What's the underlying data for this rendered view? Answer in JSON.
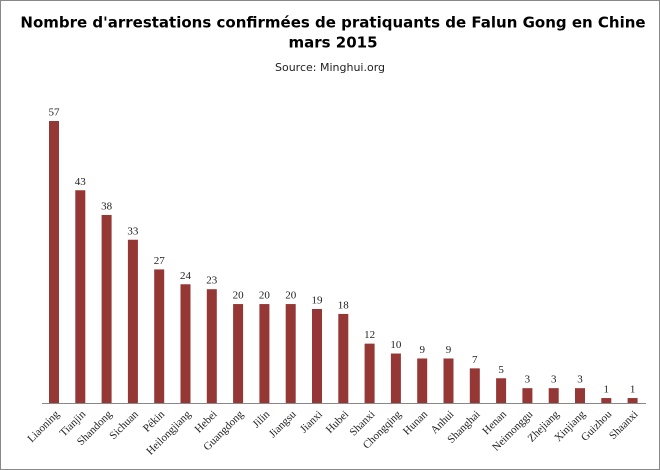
{
  "chart_data": {
    "type": "bar",
    "title": [
      "Nombre d'arrestations confirmées de pratiquants de Falun Gong en Chine",
      "mars 2015"
    ],
    "source": "Source: Minghui.org",
    "categories": [
      "Liaoning",
      "Tianjin",
      "Shandong",
      "Sichuan",
      "Pékin",
      "Heilongjiang",
      "Hebei",
      "Guangdong",
      "Jilin",
      "Jiangsu",
      "Jianxi",
      "Hubei",
      "Shanxi",
      "Chongqing",
      "Hunan",
      "Anhui",
      "Shanghai",
      "Henan",
      "Neimonggu",
      "Zhejiang",
      "Xinjiang",
      "Guizhou",
      "Shaanxi"
    ],
    "values": [
      57,
      43,
      38,
      33,
      27,
      24,
      23,
      20,
      20,
      20,
      19,
      18,
      12,
      10,
      9,
      9,
      7,
      5,
      3,
      3,
      3,
      1,
      1
    ],
    "color": "#953735"
  }
}
